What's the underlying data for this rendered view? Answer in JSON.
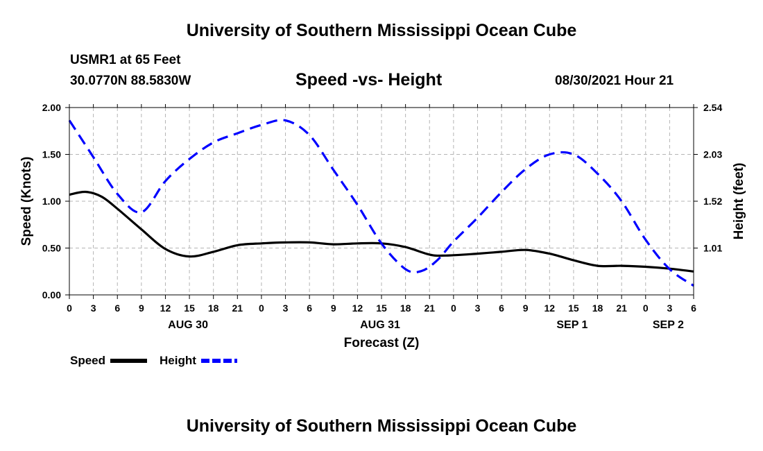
{
  "header": {
    "title": "University of Southern Mississippi Ocean Cube",
    "station": "USMR1 at 65 Feet",
    "coords": "30.0770N  88.5830W",
    "datetime": "08/30/2021 Hour 21"
  },
  "footer": {
    "title": "University of Southern Mississippi Ocean Cube"
  },
  "legend": {
    "speed_label": "Speed",
    "height_label": "Height"
  },
  "colors": {
    "speed": "#000000",
    "height": "#0000ff",
    "grid": "#b4b4b4"
  },
  "chart_data": {
    "type": "line",
    "title": "Speed -vs- Height",
    "xlabel": "Forecast (Z)",
    "ylabel": "Speed (Knots)",
    "y2label": "Height (feet)",
    "x_hours_range": [
      0,
      78
    ],
    "ylim": [
      0,
      2.0
    ],
    "y2lim": [
      0.5,
      2.54
    ],
    "yticks": [
      "0.00",
      "0.50",
      "1.00",
      "1.50",
      "2.00"
    ],
    "y2ticks": [
      {
        "value": 1.01,
        "label": "1.01"
      },
      {
        "value": 1.52,
        "label": "1.52"
      },
      {
        "value": 2.03,
        "label": "2.03"
      },
      {
        "value": 2.54,
        "label": "2.54"
      }
    ],
    "xtick_labels": [
      "0",
      "3",
      "6",
      "9",
      "12",
      "15",
      "18",
      "21",
      "0",
      "3",
      "6",
      "9",
      "12",
      "15",
      "18",
      "21",
      "0",
      "3",
      "6",
      "9",
      "12",
      "15",
      "18",
      "21",
      "0",
      "3",
      "6"
    ],
    "date_labels": [
      {
        "hour": 15,
        "label": "AUG 30"
      },
      {
        "hour": 39,
        "label": "AUG 31"
      },
      {
        "hour": 63,
        "label": "SEP 1"
      },
      {
        "hour": 75,
        "label": "SEP 2"
      }
    ],
    "series": [
      {
        "name": "Speed",
        "axis": "left",
        "style": "solid",
        "x": [
          0,
          2,
          4,
          6,
          9,
          12,
          15,
          18,
          21,
          24,
          27,
          30,
          33,
          36,
          39,
          42,
          45,
          47,
          51,
          54,
          57,
          60,
          63,
          66,
          69,
          72,
          75,
          78
        ],
        "values": [
          1.07,
          1.1,
          1.05,
          0.92,
          0.7,
          0.49,
          0.41,
          0.46,
          0.53,
          0.55,
          0.56,
          0.56,
          0.54,
          0.55,
          0.55,
          0.51,
          0.43,
          0.42,
          0.44,
          0.46,
          0.48,
          0.44,
          0.37,
          0.31,
          0.31,
          0.3,
          0.28,
          0.25
        ]
      },
      {
        "name": "Height",
        "axis": "right",
        "style": "dashed",
        "x": [
          0,
          3,
          6,
          9,
          12,
          15,
          18,
          21,
          24,
          27,
          30,
          33,
          36,
          39,
          42,
          44,
          46,
          48,
          51,
          54,
          57,
          60,
          63,
          66,
          69,
          72,
          75,
          78
        ],
        "values": [
          2.4,
          2.0,
          1.6,
          1.4,
          1.74,
          1.98,
          2.16,
          2.26,
          2.35,
          2.4,
          2.24,
          1.86,
          1.48,
          1.06,
          0.78,
          0.76,
          0.88,
          1.08,
          1.34,
          1.62,
          1.87,
          2.03,
          2.03,
          1.82,
          1.52,
          1.1,
          0.78,
          0.6
        ]
      }
    ]
  }
}
